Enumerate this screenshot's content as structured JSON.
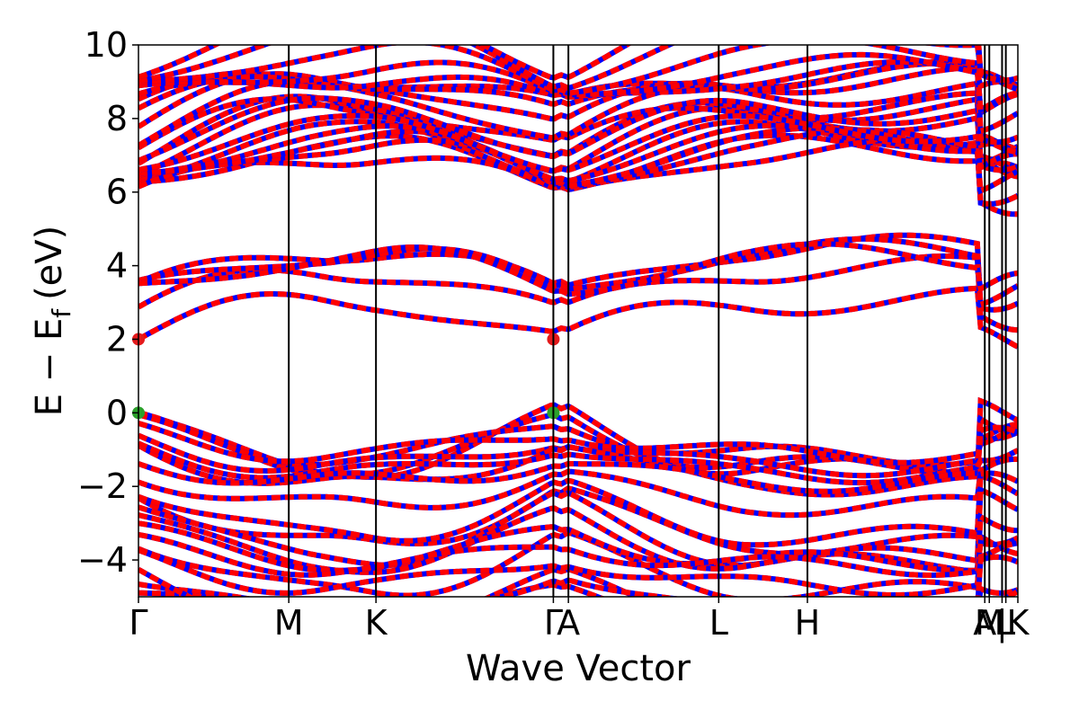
{
  "chart_data": {
    "type": "line",
    "xlabel": "Wave Vector",
    "ylabel": {
      "main": "E − E",
      "sub": "f",
      "unit": "(eV)"
    },
    "ylim": [
      -5,
      10
    ],
    "yticks": [
      -4,
      -2,
      0,
      2,
      4,
      6,
      8,
      10
    ],
    "ytick_labels": [
      "−4",
      "−2",
      "0",
      "2",
      "4",
      "6",
      "8",
      "10"
    ],
    "xlim": [
      0,
      5.85
    ],
    "kpoints": [
      {
        "label": "Γ",
        "x": 0.0
      },
      {
        "label": "M",
        "x": 1.0
      },
      {
        "label": "K",
        "x": 1.58
      },
      {
        "label": "Γ",
        "x": 2.76
      },
      {
        "label": "A",
        "x": 2.86
      },
      {
        "label": "L",
        "x": 3.86
      },
      {
        "label": "H",
        "x": 4.45
      },
      {
        "label": "A",
        "x": 5.63
      },
      {
        "label": "M",
        "x": 5.66
      },
      {
        "label": "|",
        "x": 5.745
      },
      {
        "label": "L",
        "x": 5.77
      },
      {
        "label": "K",
        "x": 5.85
      }
    ],
    "band_edge_markers": [
      {
        "x": 0.0,
        "y": 2.0,
        "color": "#e41a1c"
      },
      {
        "x": 2.76,
        "y": 2.0,
        "color": "#e41a1c"
      },
      {
        "x": 0.0,
        "y": 0.0,
        "color": "#2ca02c"
      },
      {
        "x": 2.76,
        "y": 0.0,
        "color": "#2ca02c"
      }
    ],
    "line_colors": {
      "spin_up": "#ff0000",
      "spin_down": "#0000ff"
    },
    "grid": false,
    "legend": "none",
    "conduction_bands_at_gamma": [
      2.0,
      2.65,
      3.2,
      3.3,
      3.4,
      6.4,
      6.6,
      6.8,
      7.0,
      7.2,
      8.3
    ],
    "valence_bands_at_gamma": [
      0.0,
      -0.15,
      -0.3,
      -0.5,
      -0.7,
      -0.8,
      -2.1,
      -3.45,
      -4.5,
      -4.9
    ]
  }
}
